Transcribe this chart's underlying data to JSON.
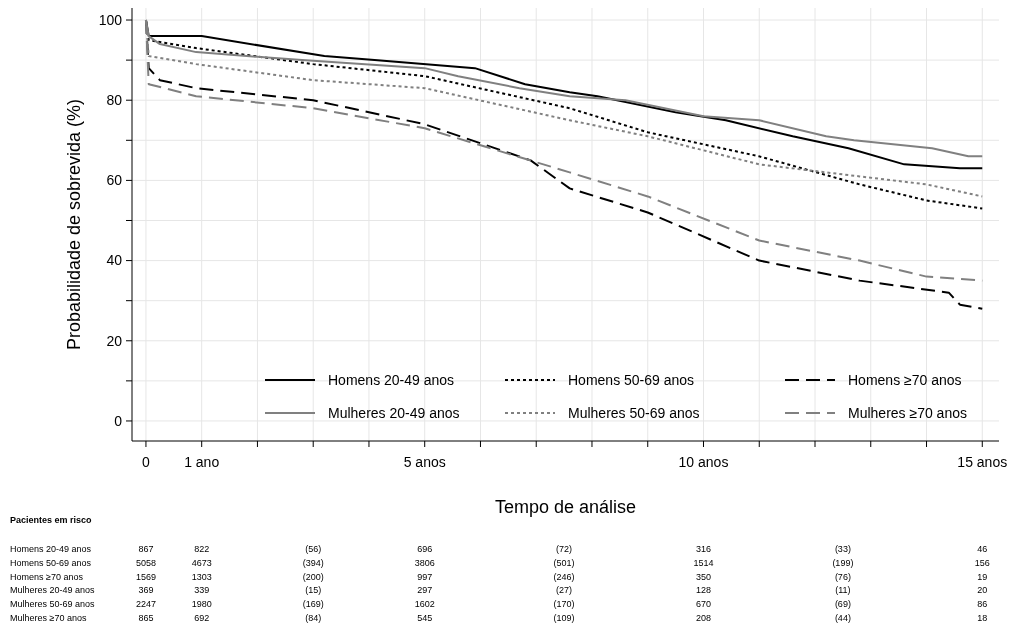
{
  "chart_data": {
    "type": "line",
    "xlabel": "Tempo de análise",
    "ylabel": "Probabilidade de sobrevida (%)",
    "xlim": [
      -0.25,
      15.3
    ],
    "ylim": [
      -5,
      103
    ],
    "xticks": [
      {
        "value": 0,
        "label": "0"
      },
      {
        "value": 1,
        "label": "1 ano"
      },
      {
        "value": 2,
        "label": null
      },
      {
        "value": 3,
        "label": null
      },
      {
        "value": 4,
        "label": null
      },
      {
        "value": 5,
        "label": "5 anos"
      },
      {
        "value": 6,
        "label": null
      },
      {
        "value": 7,
        "label": null
      },
      {
        "value": 8,
        "label": null
      },
      {
        "value": 9,
        "label": null
      },
      {
        "value": 10,
        "label": "10 anos"
      },
      {
        "value": 11,
        "label": null
      },
      {
        "value": 12,
        "label": null
      },
      {
        "value": 13,
        "label": null
      },
      {
        "value": 14,
        "label": null
      },
      {
        "value": 15,
        "label": "15 anos"
      }
    ],
    "yticks": [
      0,
      {
        "value": 10,
        "label": null
      },
      20,
      {
        "value": 30,
        "label": null
      },
      40,
      {
        "value": 50,
        "label": null
      },
      60,
      {
        "value": 70,
        "label": null
      },
      80,
      {
        "value": 90,
        "label": null
      },
      100
    ],
    "grid": true,
    "legend": "bottom",
    "series": [
      {
        "name": "Homens 20-49 anos",
        "color": "#000000",
        "line_style": "solid",
        "x": [
          0,
          0.05,
          1,
          3.2,
          4.1,
          5.9,
          6.8,
          7.6,
          8.1,
          9.5,
          10.4,
          11.6,
          12.6,
          13.6,
          14.6,
          15
        ],
        "values": [
          100,
          96,
          96,
          91,
          90,
          88,
          84,
          82,
          81,
          77,
          75,
          71,
          68,
          64,
          63,
          63
        ]
      },
      {
        "name": "Homens 50-69 anos",
        "color": "#000000",
        "line_style": "dotted",
        "x": [
          0,
          0.05,
          0.9,
          3,
          5,
          7.6,
          9,
          11,
          12.8,
          14,
          15
        ],
        "values": [
          100,
          95,
          93,
          89,
          86,
          78,
          72,
          66,
          59,
          55,
          53
        ]
      },
      {
        "name": "Homens ≥70 anos",
        "color": "#000000",
        "line_style": "dashed",
        "x": [
          0,
          0.05,
          0.25,
          0.9,
          3,
          5,
          6.9,
          7.6,
          9,
          11,
          12.8,
          14.4,
          14.6,
          15
        ],
        "values": [
          100,
          88,
          85,
          83,
          80,
          74,
          65,
          58,
          52,
          40,
          35,
          32,
          29,
          28
        ]
      },
      {
        "name": "Mulheres 20-49 anos",
        "color": "#808080",
        "line_style": "solid",
        "x": [
          0,
          0.05,
          0.25,
          0.9,
          2.8,
          5,
          5.6,
          6.7,
          7.6,
          8.6,
          10,
          11,
          12.2,
          12.7,
          14.1,
          14.75,
          15
        ],
        "values": [
          100,
          96,
          94,
          92,
          90,
          88,
          86,
          83,
          81,
          80,
          76,
          75,
          71,
          70,
          68,
          66,
          66
        ]
      },
      {
        "name": "Mulheres 50-69 anos",
        "color": "#808080",
        "line_style": "dotted",
        "x": [
          0,
          0.05,
          0.9,
          3,
          5,
          7.6,
          9,
          11,
          12.8,
          14,
          15
        ],
        "values": [
          100,
          91,
          89,
          85,
          83,
          75,
          71,
          64,
          61,
          59,
          56
        ]
      },
      {
        "name": "Mulheres ≥70 anos",
        "color": "#808080",
        "line_style": "dashed",
        "x": [
          0,
          0.05,
          0.9,
          3,
          5,
          7.6,
          9,
          11,
          12.8,
          14,
          15
        ],
        "values": [
          100,
          84,
          81,
          78,
          73,
          62,
          56,
          45,
          40,
          36,
          35
        ]
      }
    ],
    "annotations": [
      "Pacientes em risco",
      "Homens 20-49 anos",
      "867",
      "822",
      "(56)",
      "696",
      "(72)",
      "316",
      "(33)",
      "46",
      "Homens 50-69 anos",
      "5058",
      "4673",
      "(394)",
      "3806",
      "(501)",
      "1514",
      "(199)",
      "156",
      "Homens ≥70 anos",
      "1569",
      "1303",
      "(200)",
      "997",
      "(246)",
      "350",
      "(76)",
      "19",
      "Mulheres 20-49 anos",
      "369",
      "339",
      "(15)",
      "297",
      "(27)",
      "128",
      "(11)",
      "20",
      "Mulheres 50-69 anos",
      "2247",
      "1980",
      "(169)",
      "1602",
      "(170)",
      "670",
      "(69)",
      "86",
      "Mulheres ≥70 anos",
      "865",
      "692",
      "(84)",
      "545",
      "(109)",
      "208",
      "(44)",
      "18"
    ]
  }
}
